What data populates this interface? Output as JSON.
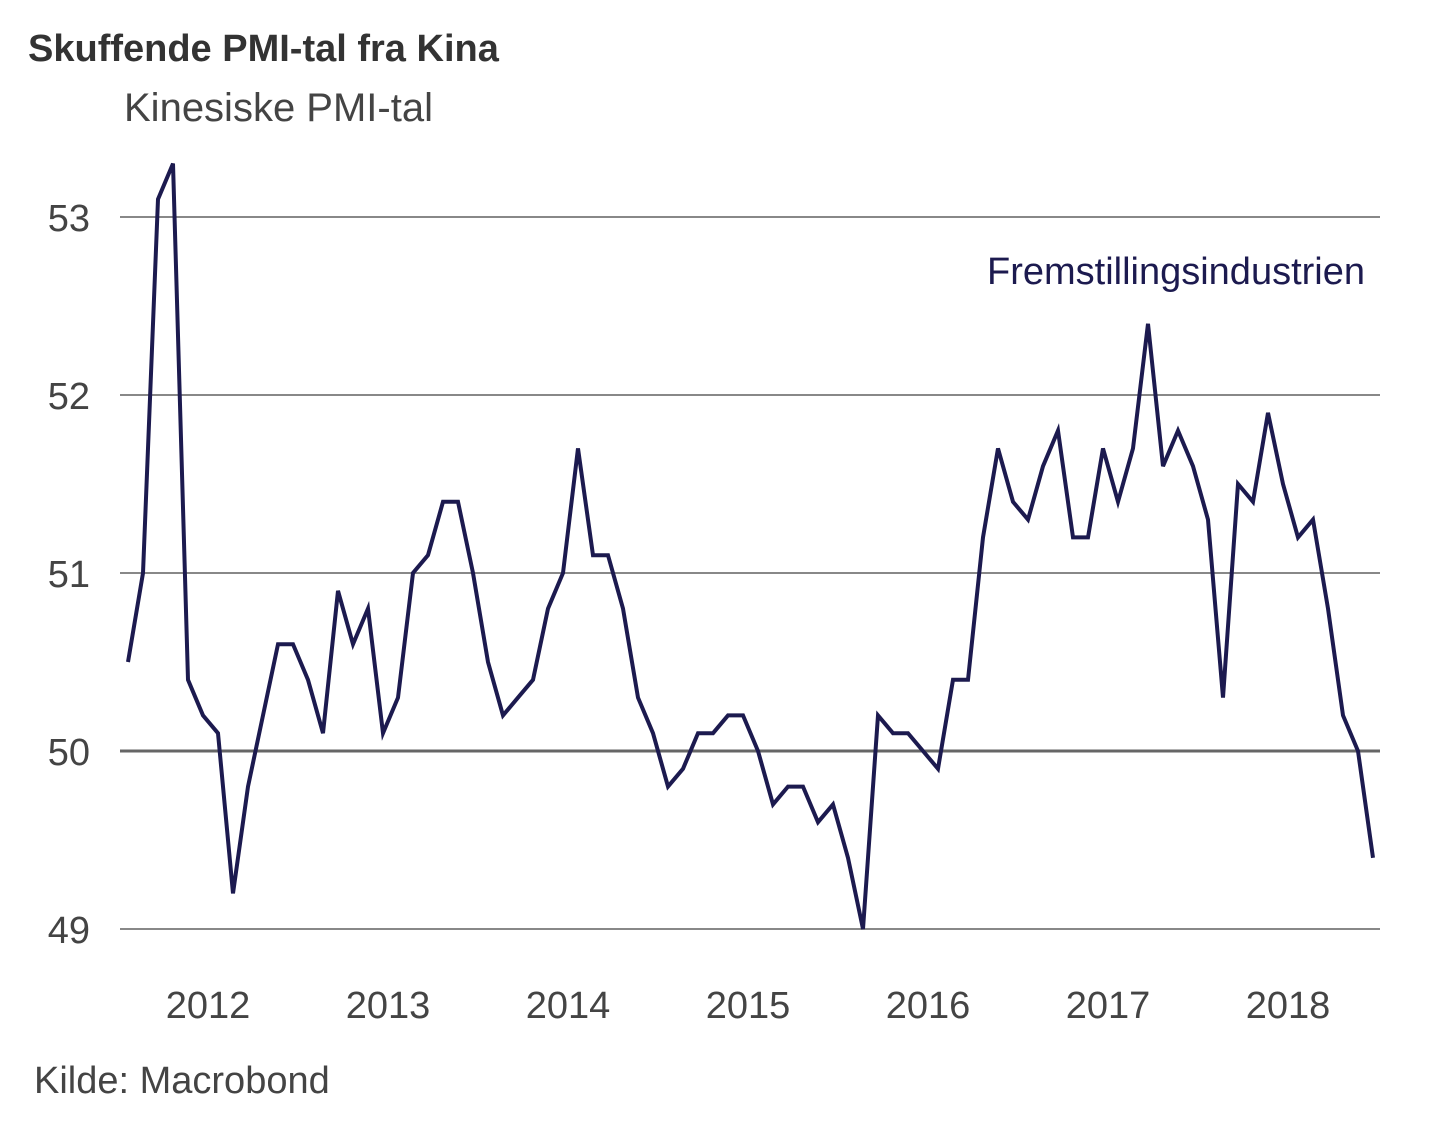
{
  "chart_data": {
    "type": "line",
    "title": "Skuffende PMI-tal fra Kina",
    "subtitle": "Kinesiske PMI-tal",
    "source": "Kilde: Macrobond",
    "xlabel": "",
    "ylabel": "",
    "ylim": [
      49,
      53
    ],
    "yticks": [
      49,
      50,
      51,
      52,
      53
    ],
    "xticks": [
      "2012",
      "2013",
      "2014",
      "2015",
      "2016",
      "2017",
      "2018"
    ],
    "xlim": [
      "2012-01",
      "2018-12"
    ],
    "grid": true,
    "legend": "none",
    "colors": {
      "line": "#1c1a4f",
      "grid": "#888888",
      "text": "#444444"
    },
    "series": [
      {
        "name": "Fremstillingsindustrien",
        "x": [
          "2012-01",
          "2012-02",
          "2012-03",
          "2012-04",
          "2012-05",
          "2012-06",
          "2012-07",
          "2012-08",
          "2012-09",
          "2012-10",
          "2012-11",
          "2012-12",
          "2013-01",
          "2013-02",
          "2013-03",
          "2013-04",
          "2013-05",
          "2013-06",
          "2013-07",
          "2013-08",
          "2013-09",
          "2013-10",
          "2013-11",
          "2013-12",
          "2014-01",
          "2014-02",
          "2014-03",
          "2014-04",
          "2014-05",
          "2014-06",
          "2014-07",
          "2014-08",
          "2014-09",
          "2014-10",
          "2014-11",
          "2014-12",
          "2015-01",
          "2015-02",
          "2015-03",
          "2015-04",
          "2015-05",
          "2015-06",
          "2015-07",
          "2015-08",
          "2015-09",
          "2015-10",
          "2015-11",
          "2015-12",
          "2016-01",
          "2016-02",
          "2016-03",
          "2016-04",
          "2016-05",
          "2016-06",
          "2016-07",
          "2016-08",
          "2016-09",
          "2016-10",
          "2016-11",
          "2016-12",
          "2017-01",
          "2017-02",
          "2017-03",
          "2017-04",
          "2017-05",
          "2017-06",
          "2017-07",
          "2017-08",
          "2017-09",
          "2017-10",
          "2017-11",
          "2017-12",
          "2018-01",
          "2018-02",
          "2018-03",
          "2018-04",
          "2018-05",
          "2018-06",
          "2018-07",
          "2018-08",
          "2018-09",
          "2018-10",
          "2018-11",
          "2018-12"
        ],
        "values": [
          50.5,
          51.0,
          53.1,
          53.3,
          50.4,
          50.2,
          50.1,
          49.2,
          49.8,
          50.2,
          50.6,
          50.6,
          50.4,
          50.1,
          50.9,
          50.6,
          50.8,
          50.1,
          50.3,
          51.0,
          51.1,
          51.4,
          51.4,
          51.0,
          50.5,
          50.2,
          50.3,
          50.4,
          50.8,
          51.0,
          51.7,
          51.1,
          51.1,
          50.8,
          50.3,
          50.1,
          49.8,
          49.9,
          50.1,
          50.1,
          50.2,
          50.2,
          50.0,
          49.7,
          49.8,
          49.8,
          49.6,
          49.7,
          49.4,
          49.0,
          50.2,
          50.1,
          50.1,
          50.0,
          49.9,
          50.4,
          50.4,
          51.2,
          51.7,
          51.4,
          51.3,
          51.6,
          51.8,
          51.2,
          51.2,
          51.7,
          51.4,
          51.7,
          52.4,
          51.6,
          51.8,
          51.6,
          51.3,
          50.3,
          51.5,
          51.4,
          51.9,
          51.5,
          51.2,
          51.3,
          50.8,
          50.2,
          50.0,
          49.4
        ]
      }
    ]
  }
}
